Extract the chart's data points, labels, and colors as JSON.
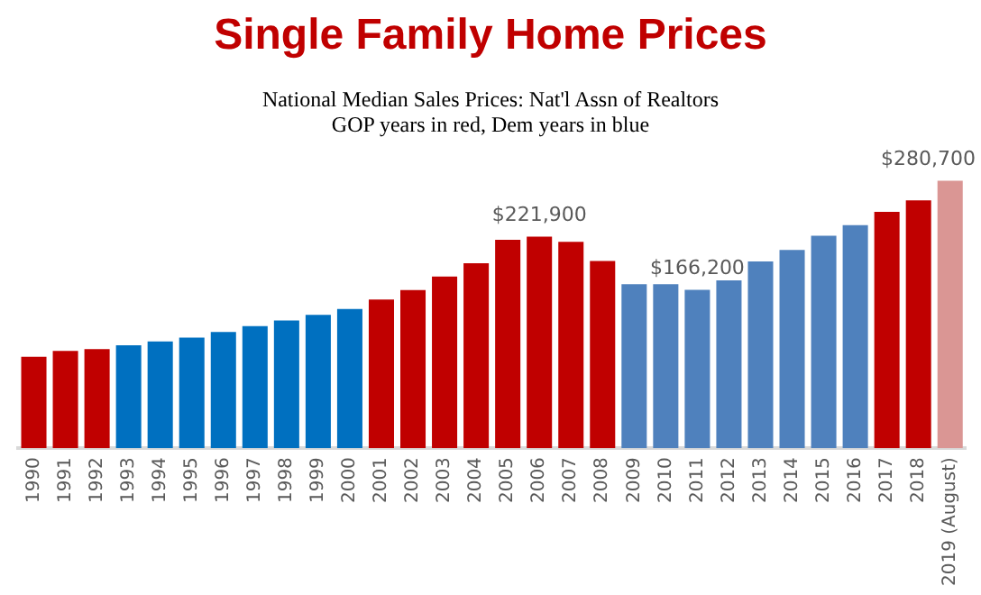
{
  "chart_data": {
    "type": "bar",
    "title": "Single Family Home Prices",
    "subtitle": "National Median Sales Prices: Nat'l Assn of Realtors\nGOP years in red, Dem years in blue",
    "categories": [
      "1990",
      "1991",
      "1992",
      "1993",
      "1994",
      "1995",
      "1996",
      "1997",
      "1998",
      "1999",
      "2000",
      "2001",
      "2002",
      "2003",
      "2004",
      "2005",
      "2006",
      "2007",
      "2008",
      "2009",
      "2010",
      "2011",
      "2012",
      "2013",
      "2014",
      "2015",
      "2016",
      "2017",
      "2018",
      "2019 (August)"
    ],
    "values": [
      96000,
      102000,
      104000,
      108000,
      112000,
      116000,
      122000,
      128000,
      134000,
      140000,
      146000,
      156000,
      166000,
      180000,
      194000,
      218600,
      221900,
      216500,
      196500,
      172000,
      172000,
      166200,
      176000,
      196000,
      208000,
      223000,
      234000,
      248000,
      260000,
      280700
    ],
    "colors": [
      "#c00000",
      "#c00000",
      "#c00000",
      "#0070c0",
      "#0070c0",
      "#0070c0",
      "#0070c0",
      "#0070c0",
      "#0070c0",
      "#0070c0",
      "#0070c0",
      "#c00000",
      "#c00000",
      "#c00000",
      "#c00000",
      "#c00000",
      "#c00000",
      "#c00000",
      "#c00000",
      "#4f81bd",
      "#4f81bd",
      "#4f81bd",
      "#4f81bd",
      "#4f81bd",
      "#4f81bd",
      "#4f81bd",
      "#4f81bd",
      "#c00000",
      "#c00000",
      "#da9694"
    ],
    "value_labels": [
      null,
      null,
      null,
      null,
      null,
      null,
      null,
      null,
      null,
      null,
      null,
      null,
      null,
      null,
      null,
      null,
      "$221,900",
      null,
      null,
      null,
      null,
      "$166,200",
      null,
      null,
      null,
      null,
      null,
      null,
      null,
      "$280,700"
    ],
    "grid": false,
    "legend": false
  }
}
